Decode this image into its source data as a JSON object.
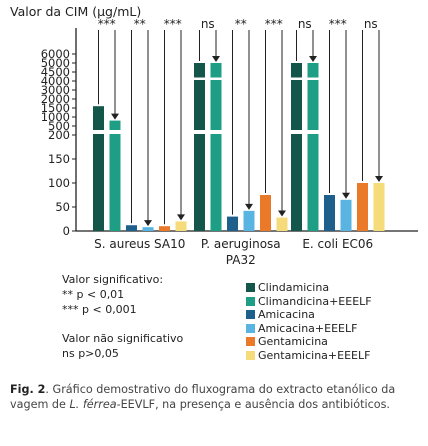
{
  "chart_data": {
    "type": "bar",
    "ylabel": "Valor da CIM (μg/mL)",
    "scale": "broken axis: 0–200 linear, 200–2000 in steps of 500, 2000–6000 in steps of 1000",
    "y_ticks": [
      "0",
      "50",
      "100",
      "150",
      "200",
      "500",
      "1000",
      "1500",
      "2000",
      "3000",
      "4000",
      "4500",
      "5000",
      "6000"
    ],
    "categories": [
      "S. aureus SA10",
      "P. aeruginosa PA32",
      "E. coli EC06"
    ],
    "series": [
      {
        "name": "Clindamicina",
        "color": "#14574a",
        "values": [
          1600,
          5000,
          5000
        ]
      },
      {
        "name": "Climandicina+EEELF",
        "color": "#1f9e86",
        "values": [
          800,
          5000,
          5000
        ]
      },
      {
        "name": "Amicacina",
        "color": "#1f5f8b",
        "values": [
          12,
          30,
          75
        ]
      },
      {
        "name": "Amicacina+EEELF",
        "color": "#5ab4e2",
        "values": [
          8,
          42,
          65
        ]
      },
      {
        "name": "Gentamicina",
        "color": "#ea7a2a",
        "values": [
          10,
          75,
          100
        ]
      },
      {
        "name": "Gentamicina+EEELF",
        "color": "#f5db7a",
        "values": [
          20,
          28,
          100
        ]
      }
    ],
    "significance": [
      [
        "***",
        "**",
        "***"
      ],
      [
        "ns",
        "**",
        "***"
      ],
      [
        "ns",
        "***",
        "ns"
      ]
    ]
  },
  "notes": {
    "sig_title": "Valor significativo:",
    "sig_2": "** p < 0,01",
    "sig_3": "*** p < 0,001",
    "ns_title": "Valor não significativo",
    "ns_desc": "ns p>0,05"
  },
  "caption": {
    "label": "Fig. 2",
    "text_1": ". Gráfico demostrativo do fluxograma do extracto etanólico da vagem de ",
    "species": "L. férrea",
    "text_2": "-EEVLF, na presença e ausência dos antibióticos."
  }
}
